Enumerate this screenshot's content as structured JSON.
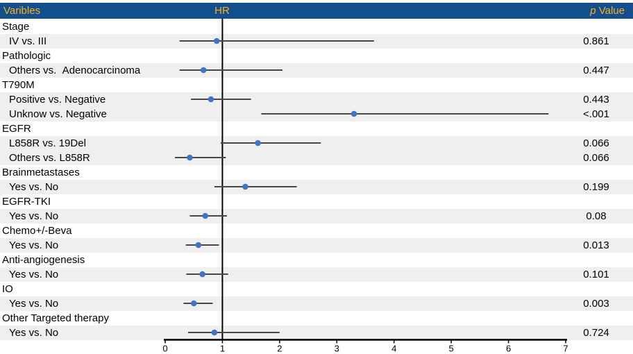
{
  "header": {
    "variables_label": "Varibles",
    "hr_label": "HR",
    "p_label_italic": "p",
    "p_label_rest": " Value"
  },
  "colors": {
    "header_bg": "#134F8C",
    "header_text": "#FFAF1E",
    "stripe": "#EFEFEF",
    "ci_line": "#474747",
    "dot": "#4472C4",
    "axis": "#000000"
  },
  "chart_data": {
    "type": "forest",
    "title": "",
    "xlabel": "HR",
    "axis": {
      "min": 0,
      "max": 7,
      "ticks": [
        0,
        1,
        2,
        3,
        4,
        5,
        6,
        7
      ],
      "reference_line": 1
    },
    "rows": [
      {
        "kind": "group",
        "label": "Stage"
      },
      {
        "kind": "data",
        "label": "IV vs. III",
        "hr": 0.9,
        "ci_low": 0.25,
        "ci_high": 3.65,
        "p": "0.861"
      },
      {
        "kind": "group",
        "label": "Pathologic"
      },
      {
        "kind": "data",
        "label": "Others vs.  Adenocarcinoma",
        "hr": 0.67,
        "ci_low": 0.25,
        "ci_high": 2.05,
        "p": "0.447"
      },
      {
        "kind": "group",
        "label": "T790M"
      },
      {
        "kind": "data",
        "label": "Positive vs. Negative",
        "hr": 0.8,
        "ci_low": 0.45,
        "ci_high": 1.5,
        "p": "0.443"
      },
      {
        "kind": "data",
        "label": "Unknow vs. Negative",
        "hr": 3.3,
        "ci_low": 1.68,
        "ci_high": 6.7,
        "p": "<.001"
      },
      {
        "kind": "group",
        "label": "EGFR"
      },
      {
        "kind": "data",
        "label": "L858R vs. 19Del",
        "hr": 1.62,
        "ci_low": 0.97,
        "ci_high": 2.72,
        "p": "0.066"
      },
      {
        "kind": "data",
        "label": "Others vs. L858R",
        "hr": 0.43,
        "ci_low": 0.17,
        "ci_high": 1.06,
        "p": "0.066"
      },
      {
        "kind": "group",
        "label": "Brainmetastases"
      },
      {
        "kind": "data",
        "label": "Yes vs. No",
        "hr": 1.4,
        "ci_low": 0.86,
        "ci_high": 2.3,
        "p": "0.199"
      },
      {
        "kind": "group",
        "label": "EGFR-TKI"
      },
      {
        "kind": "data",
        "label": "Yes vs. No",
        "hr": 0.7,
        "ci_low": 0.43,
        "ci_high": 1.08,
        "p": "0.08"
      },
      {
        "kind": "group",
        "label": "Chemo+/-Beva"
      },
      {
        "kind": "data",
        "label": "Yes vs. No",
        "hr": 0.58,
        "ci_low": 0.36,
        "ci_high": 0.94,
        "p": "0.013"
      },
      {
        "kind": "group",
        "label": "Anti-angiogenesis"
      },
      {
        "kind": "data",
        "label": "Yes vs. No",
        "hr": 0.65,
        "ci_low": 0.37,
        "ci_high": 1.1,
        "p": "0.101"
      },
      {
        "kind": "group",
        "label": "IO"
      },
      {
        "kind": "data",
        "label": "Yes vs. No",
        "hr": 0.5,
        "ci_low": 0.32,
        "ci_high": 0.83,
        "p": "0.003"
      },
      {
        "kind": "group",
        "label": "Other Targeted therapy"
      },
      {
        "kind": "data",
        "label": "Yes vs. No",
        "hr": 0.86,
        "ci_low": 0.4,
        "ci_high": 2.0,
        "p": "0.724"
      }
    ]
  }
}
